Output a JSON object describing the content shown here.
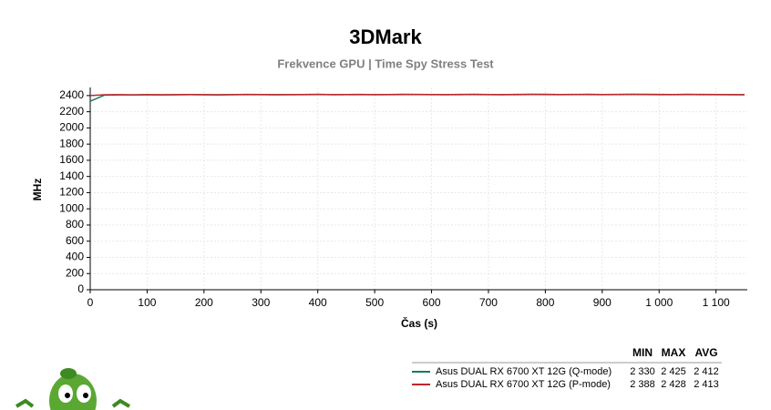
{
  "chart_data": {
    "type": "line",
    "title": "3DMark",
    "subtitle": "Frekvence GPU | Time Spy Stress Test",
    "y_label": "MHz",
    "x_label": "Čas (s)",
    "x": [
      0,
      25,
      50,
      75,
      100,
      125,
      150,
      175,
      200,
      225,
      250,
      275,
      300,
      325,
      350,
      375,
      400,
      425,
      450,
      475,
      500,
      525,
      550,
      575,
      600,
      625,
      650,
      675,
      700,
      725,
      750,
      775,
      800,
      825,
      850,
      875,
      900,
      925,
      950,
      975,
      1000,
      1025,
      1050,
      1075,
      1100,
      1125,
      1150
    ],
    "series": [
      {
        "name": "Asus DUAL RX 6700 XT 12G (Q-mode)",
        "color": "#1b7a5c",
        "stats": [
          {
            "value": 2330,
            "label": "2 330"
          },
          {
            "value": 2425,
            "label": "2 425"
          },
          {
            "value": 2412,
            "label": "2 412"
          }
        ],
        "values": [
          2330,
          2405,
          2408,
          2409,
          2410,
          2409,
          2410,
          2411,
          2410,
          2409,
          2411,
          2412,
          2411,
          2410,
          2411,
          2412,
          2413,
          2411,
          2412,
          2412,
          2411,
          2412,
          2413,
          2413,
          2412,
          2411,
          2412,
          2413,
          2412,
          2411,
          2412,
          2414,
          2413,
          2412,
          2413,
          2413,
          2412,
          2413,
          2414,
          2413,
          2412,
          2412,
          2413,
          2412,
          2412,
          2411,
          2410
        ]
      },
      {
        "name": "Asus DUAL RX 6700 XT 12G (P-mode)",
        "color": "#c0262b",
        "stats": [
          {
            "value": 2388,
            "label": "2 388"
          },
          {
            "value": 2428,
            "label": "2 428"
          },
          {
            "value": 2413,
            "label": "2 413"
          }
        ],
        "values": [
          2400,
          2410,
          2411,
          2409,
          2412,
          2410,
          2411,
          2413,
          2412,
          2410,
          2412,
          2414,
          2413,
          2411,
          2412,
          2413,
          2415,
          2412,
          2413,
          2414,
          2412,
          2413,
          2415,
          2414,
          2413,
          2412,
          2414,
          2415,
          2413,
          2412,
          2414,
          2416,
          2415,
          2413,
          2414,
          2415,
          2413,
          2414,
          2416,
          2415,
          2414,
          2413,
          2415,
          2414,
          2413,
          2412,
          2411
        ]
      }
    ],
    "stats_headers": [
      "MIN",
      "MAX",
      "AVG"
    ],
    "xlim": [
      0,
      1155
    ],
    "xticks": [
      0,
      100,
      200,
      300,
      400,
      500,
      600,
      700,
      800,
      900,
      {
        "value": 1000,
        "label": "1 000"
      },
      {
        "value": 1100,
        "label": "1 100"
      }
    ],
    "ylim": [
      0,
      2500
    ],
    "yticks": [
      0,
      200,
      400,
      600,
      800,
      1000,
      1200,
      1400,
      1600,
      1800,
      2000,
      2200,
      2400
    ],
    "grid": true
  }
}
